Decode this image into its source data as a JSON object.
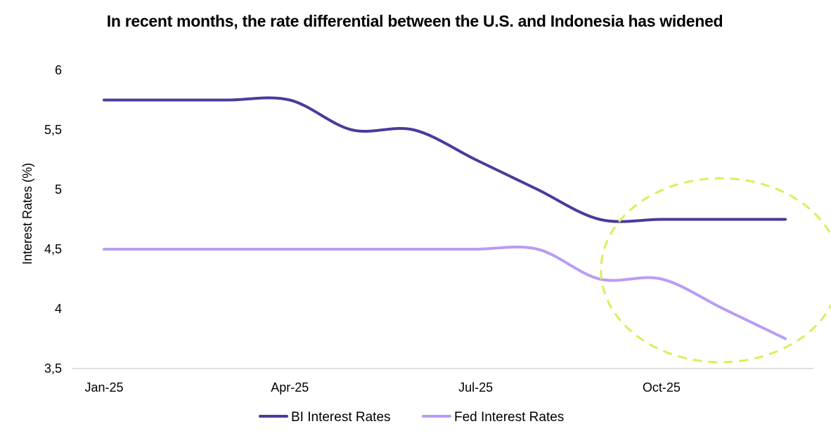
{
  "chart_data": {
    "type": "line",
    "title": "In recent months, the rate differential between the U.S. and Indonesia has widened",
    "xlabel": "",
    "ylabel": "Interest Rates (%)",
    "x": [
      "Jan-25",
      "Feb-25",
      "Mar-25",
      "Apr-25",
      "May-25",
      "Jun-25",
      "Jul-25",
      "Aug-25",
      "Sep-25",
      "Oct-25",
      "Nov-25",
      "Dec-25"
    ],
    "x_tick_labels": [
      "Jan-25",
      "Apr-25",
      "Jul-25",
      "Oct-25"
    ],
    "x_tick_positions": [
      "Jan-25",
      "Apr-25",
      "Jul-25",
      "Oct-25"
    ],
    "y_tick_labels": [
      "6",
      "5,5",
      "5",
      "4,5",
      "4",
      "3,5"
    ],
    "y_tick_values": [
      6,
      5.5,
      5,
      4.5,
      4,
      3.5
    ],
    "ylim": [
      3.5,
      6
    ],
    "grid": false,
    "legend_placement": "bottom-center",
    "series": [
      {
        "name": "BI Interest Rates",
        "color": "#4b3a9c",
        "values": [
          5.75,
          5.75,
          5.75,
          5.75,
          5.5,
          5.5,
          5.25,
          5.0,
          4.75,
          4.75,
          4.75,
          4.75
        ]
      },
      {
        "name": "Fed Interest Rates",
        "color": "#b99cf5",
        "values": [
          4.5,
          4.5,
          4.5,
          4.5,
          4.5,
          4.5,
          4.5,
          4.5,
          4.25,
          4.25,
          4.0,
          3.75
        ]
      }
    ],
    "annotations": [
      {
        "type": "dashed-ellipse",
        "color": "#d9ef5a",
        "around": [
          "Sep-25",
          "Dec-25"
        ]
      }
    ]
  }
}
